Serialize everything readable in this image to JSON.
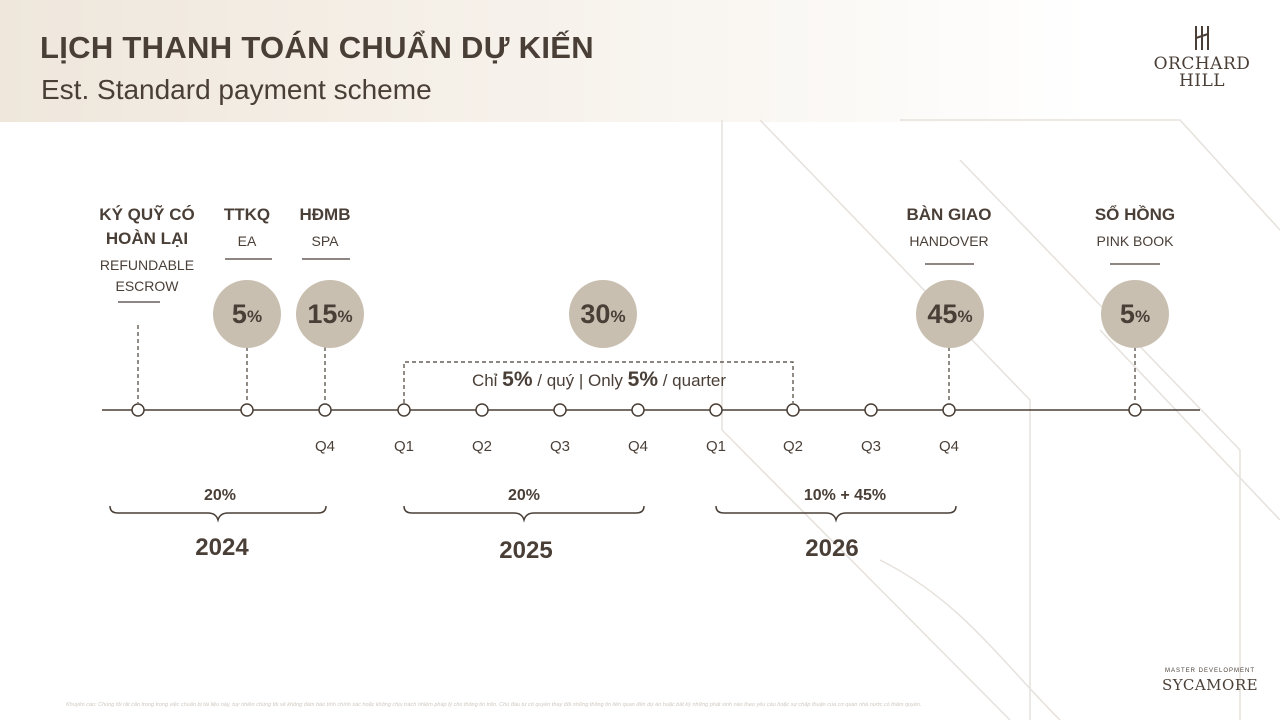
{
  "header": {
    "title": "LỊCH THANH TOÁN CHUẨN DỰ KIẾN",
    "subtitle": "Est. Standard payment scheme"
  },
  "brand": {
    "logo_line1": "ORCHARD",
    "logo_line2": "HILL",
    "footer_small": "MASTER DEVELOPMENT",
    "footer_big": "SYCAMORE"
  },
  "milestones": [
    {
      "vi_line1": "KÝ QUỸ CÓ",
      "vi_line2": "HOÀN LẠI",
      "en_line1": "REFUNDABLE",
      "en_line2": "ESCROW",
      "percent": ""
    },
    {
      "vi_line1": "TTKQ",
      "vi_line2": "",
      "en_line1": "EA",
      "en_line2": "",
      "percent": "5"
    },
    {
      "vi_line1": "HĐMB",
      "vi_line2": "",
      "en_line1": "SPA",
      "en_line2": "",
      "percent": "15"
    },
    {
      "vi_line1": "",
      "vi_line2": "",
      "en_line1": "",
      "en_line2": "",
      "percent": "30"
    },
    {
      "vi_line1": "BÀN GIAO",
      "vi_line2": "",
      "en_line1": "HANDOVER",
      "en_line2": "",
      "percent": "45"
    },
    {
      "vi_line1": "SỔ HỒNG",
      "vi_line2": "",
      "en_line1": "PINK BOOK",
      "en_line2": "",
      "percent": "5"
    }
  ],
  "percent_sign": "%",
  "quarter_note": {
    "part1": "Chỉ ",
    "bold1": "5%",
    "part2": " / quý | Only ",
    "bold2": "5%",
    "part3": " / quarter"
  },
  "ticks": [
    "Q4",
    "Q1",
    "Q2",
    "Q3",
    "Q4",
    "Q1",
    "Q2",
    "Q3",
    "Q4"
  ],
  "years": [
    {
      "year": "2024",
      "share": "20%"
    },
    {
      "year": "2025",
      "share": "20%"
    },
    {
      "year": "2026",
      "share": "10% + 45%"
    }
  ],
  "disclaimer": "Khuyến cáo: Chúng tôi rất cẩn trọng trong việc chuẩn bị tài liệu này, tuy nhiên chúng tôi sẽ không đảm bảo tính chính xác hoặc không chịu trách nhiệm pháp lý cho thông tin trên. Chủ đầu tư có quyền thay đổi những thông tin liên quan đến dự án hoặc bất kỳ những phát sinh nào theo yêu cầu hoặc sự chấp thuận của cơ quan nhà nước có thẩm quyền."
}
